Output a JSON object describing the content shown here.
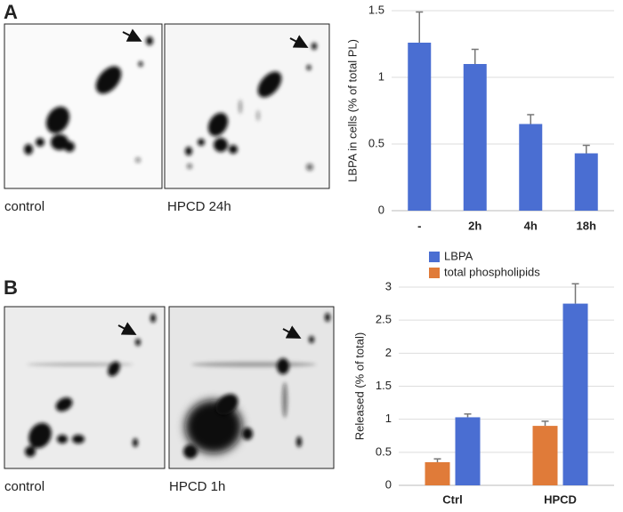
{
  "panels": [
    {
      "label": "A",
      "captions": [
        "control",
        "HPCD 24h"
      ]
    },
    {
      "label": "B",
      "captions": [
        "control",
        "HPCD 1h"
      ]
    }
  ],
  "chart_data": [
    {
      "type": "bar",
      "ylabel": "LBPA in cells (% of total PL)",
      "categories": [
        "-",
        "2h",
        "4h",
        "18h"
      ],
      "values": [
        1.26,
        1.1,
        0.65,
        0.43
      ],
      "errors": [
        0.23,
        0.11,
        0.07,
        0.06
      ],
      "color": "#4a6ed2",
      "ylim": [
        0,
        1.5
      ],
      "yticks": [
        0,
        0.5,
        1,
        1.5
      ],
      "grid": true
    },
    {
      "type": "grouped_bar",
      "ylabel": "Released  (% of total)",
      "categories": [
        "Ctrl",
        "HPCD"
      ],
      "series": [
        {
          "name": "LBPA",
          "color": "#4a6ed2",
          "values": [
            1.03,
            2.75
          ],
          "errors": [
            0.05,
            0.3
          ]
        },
        {
          "name": "total phospholipids",
          "color": "#e07b39",
          "values": [
            0.35,
            0.9
          ],
          "errors": [
            0.05,
            0.07
          ]
        }
      ],
      "ylim": [
        0,
        3
      ],
      "yticks": [
        0,
        0.5,
        1,
        1.5,
        2,
        2.5,
        3
      ],
      "grid": true,
      "legend": "top"
    }
  ]
}
